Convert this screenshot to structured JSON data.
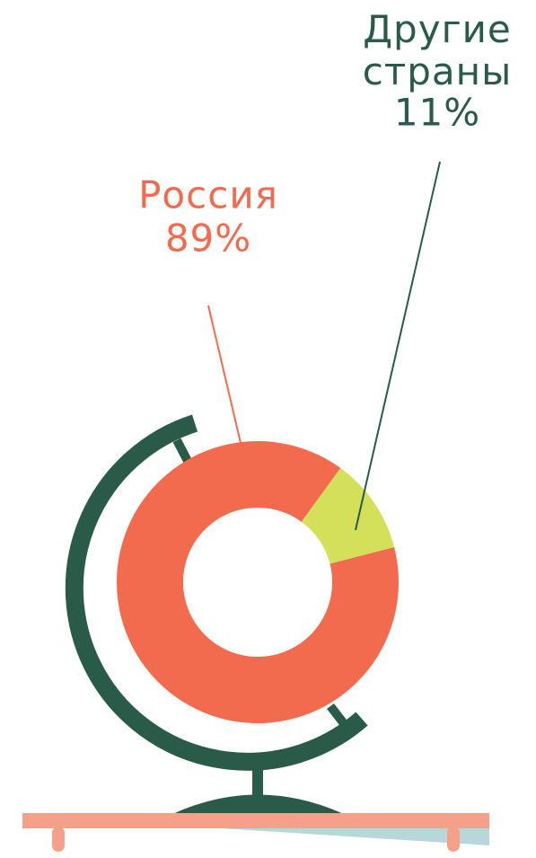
{
  "chart_data": {
    "type": "pie",
    "donut": true,
    "categories": [
      "Россия",
      "Другие страны"
    ],
    "values": [
      89,
      11
    ],
    "value_labels": [
      "89%",
      "11%"
    ],
    "colors": [
      "#f26b4e",
      "#d4e05a"
    ]
  }
}
